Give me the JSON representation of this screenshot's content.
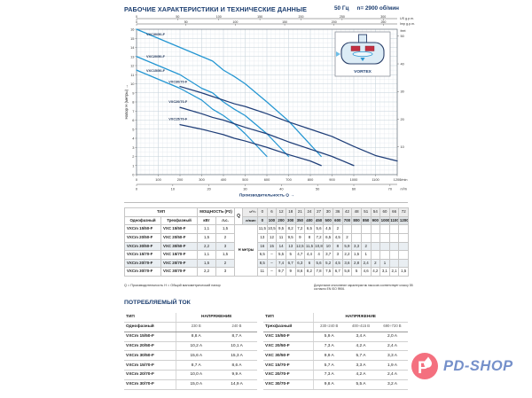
{
  "header": {
    "title": "РАБОЧИЕ ХАРАКТЕРИСТИКИ И ТЕХНИЧЕСКИЕ ДАННЫЕ",
    "freq": "50 Гц",
    "rpm": "n= 2900 об/мин"
  },
  "chart_data": {
    "type": "line",
    "title": "",
    "xlabel": "Производительность Q →",
    "ylabel": "Напор H (метры) →",
    "xlim": [
      0,
      1200
    ],
    "ylim": [
      0,
      16
    ],
    "grid": true,
    "x_unit": "l/min",
    "x_ticks": [
      0,
      100,
      200,
      300,
      400,
      500,
      600,
      700,
      800,
      900,
      1000,
      1100,
      1200
    ],
    "x2_unit": "m³/h",
    "x2_ticks": [
      0,
      10,
      20,
      30,
      40,
      50,
      60,
      70
    ],
    "top1_unit": "US g.p.m.",
    "top1_ticks": [
      0,
      50,
      100,
      150,
      200,
      250,
      300
    ],
    "top2_unit": "Imp g.p.m.",
    "top2_ticks": [
      0,
      50,
      100,
      150,
      200,
      250
    ],
    "right_unit": "feet",
    "right_ticks": [
      10,
      20,
      30,
      40,
      50
    ],
    "legend_position": "on-curve",
    "inset_label": "VORTEX",
    "series": [
      {
        "name": "VXC15/50-F",
        "color": "#2496d2",
        "label_pos": [
          45,
          11.3
        ],
        "points": [
          [
            0,
            11.5
          ],
          [
            100,
            10.5
          ],
          [
            200,
            9.5
          ],
          [
            300,
            8.2
          ],
          [
            350,
            7.2
          ],
          [
            400,
            6.5
          ],
          [
            450,
            5.6
          ],
          [
            500,
            4.5
          ],
          [
            600,
            2
          ]
        ]
      },
      {
        "name": "VXC20/50-F",
        "color": "#2496d2",
        "label_pos": [
          45,
          12.9
        ],
        "points": [
          [
            0,
            13
          ],
          [
            100,
            12
          ],
          [
            200,
            11
          ],
          [
            300,
            9.5
          ],
          [
            350,
            9
          ],
          [
            400,
            8
          ],
          [
            450,
            7.2
          ],
          [
            500,
            6.5
          ],
          [
            600,
            4.5
          ],
          [
            700,
            2
          ]
        ]
      },
      {
        "name": "VXC30/50-F",
        "color": "#2496d2",
        "label_pos": [
          45,
          15.3
        ],
        "points": [
          [
            0,
            16
          ],
          [
            100,
            15
          ],
          [
            200,
            14
          ],
          [
            300,
            13
          ],
          [
            350,
            12.5
          ],
          [
            400,
            11.5
          ],
          [
            450,
            10.8
          ],
          [
            500,
            10
          ],
          [
            600,
            8
          ],
          [
            700,
            5.9
          ],
          [
            800,
            3.3
          ],
          [
            850,
            2
          ]
        ]
      },
      {
        "name": "VXC15/70-F",
        "color": "#1f3e78",
        "label_pos": [
          148,
          6.0
        ],
        "points": [
          [
            200,
            5.5
          ],
          [
            300,
            5
          ],
          [
            350,
            4.7
          ],
          [
            400,
            4.4
          ],
          [
            450,
            4
          ],
          [
            500,
            3.7
          ],
          [
            600,
            3
          ],
          [
            700,
            2.2
          ],
          [
            800,
            1.5
          ],
          [
            850,
            1
          ]
        ]
      },
      {
        "name": "VXC20/70-F",
        "color": "#1f3e78",
        "label_pos": [
          148,
          7.9
        ],
        "points": [
          [
            200,
            7.4
          ],
          [
            300,
            6.7
          ],
          [
            350,
            6.3
          ],
          [
            400,
            6
          ],
          [
            450,
            5.6
          ],
          [
            500,
            5.2
          ],
          [
            600,
            4.5
          ],
          [
            700,
            3.6
          ],
          [
            800,
            2.8
          ],
          [
            850,
            2.4
          ],
          [
            900,
            2
          ],
          [
            1000,
            1
          ]
        ]
      },
      {
        "name": "VXC30/70-F",
        "color": "#1f3e78",
        "label_pos": [
          148,
          10.1
        ],
        "points": [
          [
            200,
            9.7
          ],
          [
            300,
            9
          ],
          [
            350,
            8.6
          ],
          [
            400,
            8.2
          ],
          [
            450,
            7.8
          ],
          [
            500,
            7.5
          ],
          [
            600,
            6.7
          ],
          [
            700,
            5.8
          ],
          [
            800,
            5
          ],
          [
            850,
            4.6
          ],
          [
            900,
            4.2
          ],
          [
            1000,
            3.1
          ],
          [
            1100,
            2.1
          ],
          [
            1200,
            1.5
          ]
        ]
      }
    ]
  },
  "main_table": {
    "headers": {
      "tip": "ТИП",
      "single": "Однофазный",
      "three": "Трехфазный",
      "power": "МОЩНОСТЬ (P2)",
      "kw": "кВт",
      "hp": "л.с.",
      "q": "Q",
      "m3h": "м³/ч",
      "lmin": "л/мин",
      "h_label": "Н метры"
    },
    "m3h_cols": [
      "0",
      "6",
      "12",
      "18",
      "21",
      "24",
      "27",
      "30",
      "36",
      "42",
      "48",
      "51",
      "54",
      "60",
      "66",
      "72"
    ],
    "lmin_cols": [
      "0",
      "100",
      "200",
      "300",
      "350",
      "400",
      "450",
      "500",
      "600",
      "700",
      "800",
      "850",
      "900",
      "1000",
      "1100",
      "1200"
    ],
    "rows": [
      {
        "single": "VXCm 15/50-F",
        "three": "VXC 15/50-F",
        "kw": "1,1",
        "hp": "1,5",
        "values": [
          "11,5",
          "10,5",
          "9,5",
          "8,2",
          "7,2",
          "6,5",
          "5,6",
          "4,5",
          "2",
          "",
          "",
          "",
          "",
          "",
          "",
          ""
        ]
      },
      {
        "single": "VXCm 20/50-F",
        "three": "VXC 20/50-F",
        "kw": "1,5",
        "hp": "2",
        "values": [
          "13",
          "12",
          "11",
          "9,5",
          "9",
          "8",
          "7,2",
          "6,5",
          "4,5",
          "2",
          "",
          "",
          "",
          "",
          "",
          ""
        ]
      },
      {
        "single": "VXCm 30/50-F",
        "three": "VXC 30/50-F",
        "kw": "2,2",
        "hp": "3",
        "values": [
          "16",
          "15",
          "14",
          "13",
          "12,5",
          "11,5",
          "10,8",
          "10",
          "8",
          "5,9",
          "3,3",
          "2",
          "",
          "",
          "",
          ""
        ]
      },
      {
        "single": "VXCm 15/70-F",
        "three": "VXC 15/70-F",
        "kw": "1,1",
        "hp": "1,5",
        "values": [
          "6,5",
          "–",
          "5,5",
          "5",
          "4,7",
          "4,4",
          "4",
          "3,7",
          "3",
          "2,2",
          "1,5",
          "1",
          "",
          "",
          "",
          ""
        ]
      },
      {
        "single": "VXCm 20/70-F",
        "three": "VXC 20/70-F",
        "kw": "1,5",
        "hp": "2",
        "values": [
          "8,5",
          "–",
          "7,4",
          "6,7",
          "6,3",
          "6",
          "5,6",
          "5,2",
          "4,5",
          "3,6",
          "2,8",
          "2,4",
          "2",
          "1",
          "",
          ""
        ]
      },
      {
        "single": "VXCm 30/70-F",
        "three": "VXC 30/70-F",
        "kw": "2,2",
        "hp": "3",
        "values": [
          "11",
          "–",
          "9,7",
          "9",
          "8,6",
          "8,2",
          "7,8",
          "7,5",
          "6,7",
          "5,8",
          "5",
          "4,6",
          "4,2",
          "3,1",
          "2,1",
          "1,5"
        ]
      }
    ]
  },
  "notes": {
    "left": "Q = Производительность    Н = Общий манометрический напор",
    "right": "Допустимое отклонение характеристик насосов соответствует классу 3B согласно EN ISO 9906."
  },
  "current": {
    "title": "ПОТРЕБЛЯЕМЫЙ ТОК",
    "single": {
      "tip": "ТИП",
      "voltage": "НАПРЯЖЕНИЕ",
      "phase": "Однофазный",
      "cols": [
        "230 В",
        "240 В"
      ],
      "rows": [
        [
          "VXCm 15/50-F",
          "8,8 A",
          "8,7 A"
        ],
        [
          "VXCm 20/50-F",
          "10,2 A",
          "10,1 A"
        ],
        [
          "VXCm 30/50-F",
          "15,6 A",
          "15,3 A"
        ],
        [
          "VXCm 15/70-F",
          "8,7 A",
          "8,6 A"
        ],
        [
          "VXCm 20/70-F",
          "10,0 A",
          "9,9 A"
        ],
        [
          "VXCm 30/70-F",
          "15,0 A",
          "14,9 A"
        ]
      ]
    },
    "three": {
      "tip": "ТИП",
      "voltage": "НАПРЯЖЕНИЕ",
      "phase": "Трехфазный",
      "cols": [
        "230÷240 В",
        "400÷415 В",
        "690÷720 В"
      ],
      "rows": [
        [
          "VXC 15/50-F",
          "5,9 A",
          "3,4 A",
          "2,0 A"
        ],
        [
          "VXC 20/50-F",
          "7,3 A",
          "4,2 A",
          "2,4 A"
        ],
        [
          "VXC 30/50-F",
          "9,9 A",
          "5,7 A",
          "3,3 A"
        ],
        [
          "VXC 15/70-F",
          "5,7 A",
          "3,3 A",
          "1,9 A"
        ],
        [
          "VXC 20/70-F",
          "7,3 A",
          "4,2 A",
          "2,4 A"
        ],
        [
          "VXC 30/70-F",
          "9,8 A",
          "5,5 A",
          "3,2 A"
        ]
      ]
    }
  },
  "logo": {
    "text": "PD-SHOP",
    "mark_letter": "P",
    "circle_color": "#f4707f",
    "text_color": "#7590ca"
  }
}
